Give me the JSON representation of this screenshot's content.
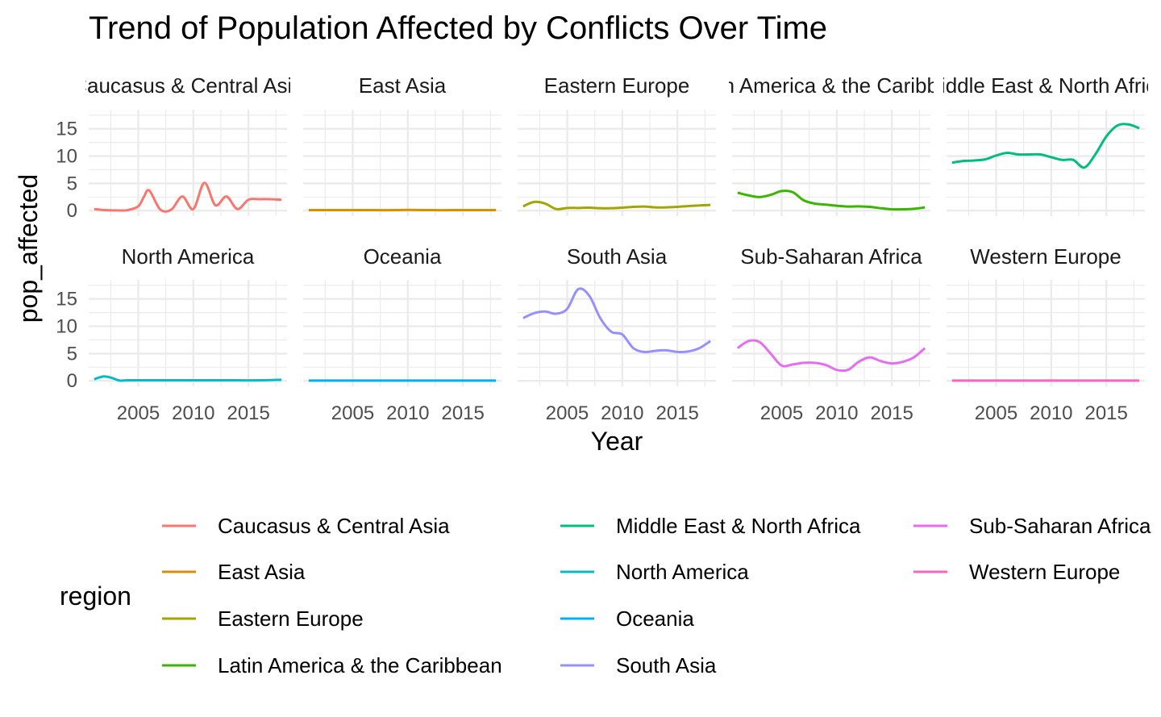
{
  "chart_data": {
    "type": "line",
    "title": "Trend of Population Affected by Conflicts Over Time",
    "xlabel": "Year",
    "ylabel": "pop_affected",
    "xlim": [
      2000.5,
      2018.5
    ],
    "ylim": [
      -1,
      18.5
    ],
    "x_ticks": [
      2005,
      2010,
      2015
    ],
    "y_ticks": [
      0,
      5,
      10,
      15
    ],
    "grid": true,
    "facet_layout": {
      "rows": 2,
      "cols": 5
    },
    "legend": {
      "title": "region",
      "position": "bottom",
      "entries": [
        "Caucasus & Central Asia",
        "East Asia",
        "Eastern Europe",
        "Latin America & the Caribbean",
        "Middle East & North Africa",
        "North America",
        "Oceania",
        "South Asia",
        "Sub-Saharan Africa",
        "Western Europe"
      ]
    },
    "facets": [
      {
        "strip": "Caucasus & Central Asia",
        "color": "#F8766D",
        "x": [
          2001,
          2002,
          2003,
          2004,
          2005,
          2005.5,
          2006,
          2007,
          2008,
          2009,
          2010,
          2011,
          2012,
          2013,
          2014,
          2015,
          2016,
          2017,
          2018
        ],
        "y": [
          0.3,
          0.1,
          0.05,
          0.1,
          0.8,
          2.5,
          3.7,
          0.2,
          0.2,
          2.6,
          0.3,
          5.1,
          1.0,
          2.6,
          0.3,
          2.0,
          2.1,
          2.1,
          2.0
        ]
      },
      {
        "strip": "East Asia",
        "color": "#D89000",
        "x": [
          2001,
          2003,
          2005,
          2007,
          2009,
          2010,
          2012,
          2014,
          2016,
          2018
        ],
        "y": [
          0.1,
          0.1,
          0.1,
          0.1,
          0.1,
          0.15,
          0.1,
          0.1,
          0.1,
          0.1
        ]
      },
      {
        "strip": "Eastern Europe",
        "color": "#A3A500",
        "x": [
          2001,
          2002,
          2003,
          2004,
          2005,
          2006,
          2007,
          2008,
          2009,
          2010,
          2011,
          2012,
          2013,
          2014,
          2015,
          2016,
          2017,
          2018
        ],
        "y": [
          0.8,
          1.6,
          1.3,
          0.3,
          0.5,
          0.5,
          0.55,
          0.45,
          0.45,
          0.55,
          0.7,
          0.75,
          0.6,
          0.6,
          0.7,
          0.85,
          0.95,
          1.05
        ]
      },
      {
        "strip": "Latin America & the Caribbean",
        "color": "#39B600",
        "x": [
          2001,
          2002,
          2003,
          2004,
          2005,
          2006,
          2007,
          2008,
          2009,
          2010,
          2011,
          2012,
          2013,
          2014,
          2015,
          2016,
          2017,
          2018
        ],
        "y": [
          3.3,
          2.8,
          2.5,
          2.9,
          3.6,
          3.4,
          1.9,
          1.3,
          1.1,
          0.9,
          0.75,
          0.8,
          0.7,
          0.45,
          0.25,
          0.25,
          0.35,
          0.6
        ]
      },
      {
        "strip": "Middle East & North Africa",
        "color": "#00BF7D",
        "x": [
          2001,
          2002,
          2003,
          2004,
          2005,
          2006,
          2007,
          2008,
          2009,
          2010,
          2011,
          2012,
          2013,
          2014,
          2015,
          2016,
          2017,
          2018
        ],
        "y": [
          8.8,
          9.1,
          9.2,
          9.4,
          10.1,
          10.6,
          10.3,
          10.3,
          10.3,
          9.8,
          9.3,
          9.3,
          7.9,
          10.3,
          13.6,
          15.6,
          15.8,
          15.1
        ]
      },
      {
        "strip": "North America",
        "color": "#00BFC4",
        "x": [
          2001,
          2001.8,
          2002.5,
          2003.3,
          2004,
          2006,
          2008,
          2010,
          2012,
          2014,
          2016,
          2018
        ],
        "y": [
          0.3,
          0.8,
          0.6,
          0.05,
          0.1,
          0.1,
          0.1,
          0.1,
          0.1,
          0.1,
          0.1,
          0.2
        ]
      },
      {
        "strip": "Oceania",
        "color": "#00B0F6",
        "x": [
          2001,
          2003,
          2005,
          2007,
          2009,
          2011,
          2013,
          2015,
          2017,
          2018
        ],
        "y": [
          0.05,
          0.05,
          0.05,
          0.05,
          0.05,
          0.05,
          0.05,
          0.05,
          0.05,
          0.05
        ]
      },
      {
        "strip": "South Asia",
        "color": "#9590FF",
        "x": [
          2001,
          2002,
          2003,
          2004,
          2005,
          2006,
          2007,
          2008,
          2009,
          2010,
          2011,
          2012,
          2013,
          2014,
          2015,
          2016,
          2017,
          2018
        ],
        "y": [
          11.5,
          12.4,
          12.7,
          12.3,
          13.2,
          16.8,
          15.6,
          11.5,
          9.0,
          8.5,
          6.0,
          5.3,
          5.5,
          5.6,
          5.3,
          5.4,
          6.0,
          7.3
        ]
      },
      {
        "strip": "Sub-Saharan Africa",
        "color": "#E76BF3",
        "x": [
          2001,
          2002,
          2003,
          2004,
          2005,
          2006,
          2007,
          2008,
          2009,
          2010,
          2011,
          2012,
          2013,
          2014,
          2015,
          2016,
          2017,
          2018
        ],
        "y": [
          6.0,
          7.3,
          7.1,
          5.0,
          2.8,
          3.0,
          3.3,
          3.3,
          2.9,
          2.0,
          2.0,
          3.5,
          4.3,
          3.6,
          3.2,
          3.5,
          4.3,
          6.0
        ]
      },
      {
        "strip": "Western Europe",
        "color": "#FF62BC",
        "x": [
          2001,
          2003,
          2005,
          2007,
          2009,
          2011,
          2013,
          2015,
          2017,
          2018
        ],
        "y": [
          0.05,
          0.05,
          0.05,
          0.05,
          0.05,
          0.05,
          0.05,
          0.05,
          0.05,
          0.05
        ]
      }
    ]
  }
}
